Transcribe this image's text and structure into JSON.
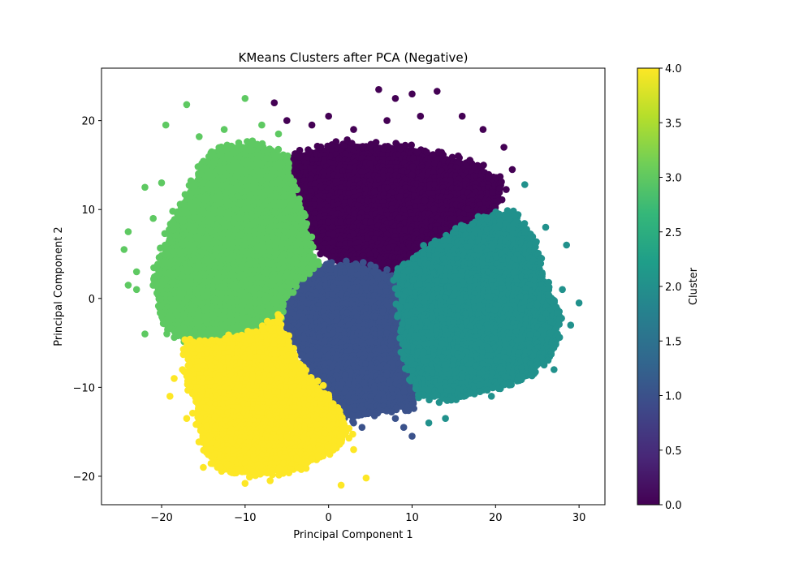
{
  "chart_data": {
    "type": "scatter",
    "title": "KMeans Clusters after PCA (Negative)",
    "xlabel": "Principal Component 1",
    "ylabel": "Principal Component 2",
    "xlim": [
      -27.2,
      33.1
    ],
    "ylim": [
      -23.2,
      25.9
    ],
    "xticks": [
      -20,
      -10,
      0,
      10,
      20,
      30
    ],
    "yticks": [
      -20,
      -10,
      0,
      10,
      20
    ],
    "xtick_labels": [
      "−20",
      "−10",
      "0",
      "10",
      "20",
      "30"
    ],
    "ytick_labels": [
      "−20",
      "−10",
      "0",
      "10",
      "20"
    ],
    "grid": false,
    "legend": "none",
    "colormap": "viridis",
    "colorbar": {
      "label": "Cluster",
      "range": [
        0.0,
        4.0
      ],
      "ticks": [
        0.0,
        0.5,
        1.0,
        1.5,
        2.0,
        2.5,
        3.0,
        3.5,
        4.0
      ],
      "tick_labels": [
        "0.0",
        "0.5",
        "1.0",
        "1.5",
        "2.0",
        "2.5",
        "3.0",
        "3.5",
        "4.0"
      ]
    },
    "clusters": [
      {
        "label": 0,
        "color": "#440154",
        "center": [
          5,
          11
        ],
        "region": [
          [
            -5,
            16
          ],
          [
            2,
            17.5
          ],
          [
            10,
            17
          ],
          [
            18,
            15
          ],
          [
            21,
            13
          ],
          [
            20,
            10
          ],
          [
            15,
            6
          ],
          [
            8,
            2.5
          ],
          [
            2,
            3.5
          ],
          [
            -2,
            6
          ],
          [
            -4,
            12
          ]
        ],
        "outliers": [
          [
            -6.5,
            22
          ],
          [
            -5,
            20
          ],
          [
            0,
            20.5
          ],
          [
            6,
            23.5
          ],
          [
            8,
            22.5
          ],
          [
            10,
            23
          ],
          [
            11,
            20.5
          ],
          [
            13,
            23.3
          ],
          [
            16,
            20.5
          ],
          [
            18.5,
            19
          ],
          [
            21,
            17
          ],
          [
            22,
            14.5
          ],
          [
            7,
            20
          ],
          [
            3,
            19
          ],
          [
            -2,
            19.5
          ]
        ]
      },
      {
        "label": 1,
        "color": "#3b528b",
        "center": [
          4,
          -4
        ],
        "region": [
          [
            -2,
            3.5
          ],
          [
            3,
            4
          ],
          [
            8,
            2.5
          ],
          [
            10,
            0.5
          ],
          [
            9.5,
            -6
          ],
          [
            10.5,
            -12
          ],
          [
            6,
            -13
          ],
          [
            2,
            -13.5
          ],
          [
            -2,
            -9
          ],
          [
            -5.5,
            -3
          ],
          [
            -4.5,
            1
          ]
        ],
        "outliers": [
          [
            4,
            -14.5
          ],
          [
            8,
            -13.5
          ],
          [
            10,
            -15.5
          ],
          [
            9,
            -14.5
          ],
          [
            3,
            -14
          ],
          [
            5.5,
            -13.2
          ]
        ]
      },
      {
        "label": 2,
        "color": "#21918c",
        "center": [
          17,
          -3
        ],
        "region": [
          [
            8,
            3
          ],
          [
            12,
            6
          ],
          [
            18,
            9
          ],
          [
            22,
            10
          ],
          [
            24.5,
            7
          ],
          [
            26,
            2
          ],
          [
            28,
            -2
          ],
          [
            27,
            -6
          ],
          [
            24,
            -9
          ],
          [
            20,
            -10
          ],
          [
            15,
            -11.5
          ],
          [
            11,
            -11
          ],
          [
            9,
            -7
          ],
          [
            8.5,
            -1
          ]
        ],
        "outliers": [
          [
            23.5,
            12.8
          ],
          [
            26,
            8
          ],
          [
            28.5,
            6
          ],
          [
            30,
            -0.5
          ],
          [
            29,
            -3
          ],
          [
            27,
            -8
          ],
          [
            19.5,
            -11
          ],
          [
            12,
            -14
          ],
          [
            14,
            -13.5
          ],
          [
            25.5,
            4.5
          ],
          [
            28,
            1
          ]
        ]
      },
      {
        "label": 3,
        "color": "#5ec962",
        "center": [
          -11,
          2
        ],
        "region": [
          [
            -14,
            16.5
          ],
          [
            -9,
            17.5
          ],
          [
            -5,
            16
          ],
          [
            -4,
            12
          ],
          [
            -2,
            6
          ],
          [
            -1.5,
            3.5
          ],
          [
            -4.5,
            1
          ],
          [
            -6,
            -2
          ],
          [
            -9,
            -4
          ],
          [
            -13,
            -4.5
          ],
          [
            -17,
            -5
          ],
          [
            -20,
            -3
          ],
          [
            -21,
            2
          ],
          [
            -19,
            8
          ],
          [
            -17,
            12
          ]
        ],
        "outliers": [
          [
            -17,
            21.8
          ],
          [
            -10,
            22.5
          ],
          [
            -19.5,
            19.5
          ],
          [
            -12.5,
            19
          ],
          [
            -8,
            19.5
          ],
          [
            -15.5,
            18.2
          ],
          [
            -24.5,
            5.5
          ],
          [
            -24,
            7.5
          ],
          [
            -23,
            1
          ],
          [
            -24,
            1.5
          ],
          [
            -22,
            12.5
          ],
          [
            -23,
            3
          ],
          [
            -21,
            9
          ],
          [
            -22,
            -4
          ],
          [
            -6,
            18.5
          ],
          [
            -20,
            13
          ]
        ]
      },
      {
        "label": 4,
        "color": "#fde725",
        "center": [
          -8,
          -14
        ],
        "region": [
          [
            -17,
            -5
          ],
          [
            -13,
            -4.5
          ],
          [
            -9,
            -4
          ],
          [
            -6,
            -2
          ],
          [
            -5.5,
            -3.5
          ],
          [
            -3,
            -8
          ],
          [
            1,
            -12
          ],
          [
            2.5,
            -15
          ],
          [
            1,
            -17
          ],
          [
            -3,
            -19
          ],
          [
            -8,
            -20
          ],
          [
            -13,
            -19.5
          ],
          [
            -15,
            -17
          ],
          [
            -16,
            -12
          ],
          [
            -17,
            -9
          ]
        ],
        "outliers": [
          [
            1.5,
            -21
          ],
          [
            4.5,
            -20.2
          ],
          [
            -10,
            -20.8
          ],
          [
            -7,
            -20.5
          ],
          [
            -18.5,
            -9
          ],
          [
            -17,
            -13.5
          ],
          [
            -17.5,
            -8
          ],
          [
            -15,
            -19
          ],
          [
            3,
            -17
          ],
          [
            -19,
            -11
          ]
        ]
      }
    ]
  }
}
